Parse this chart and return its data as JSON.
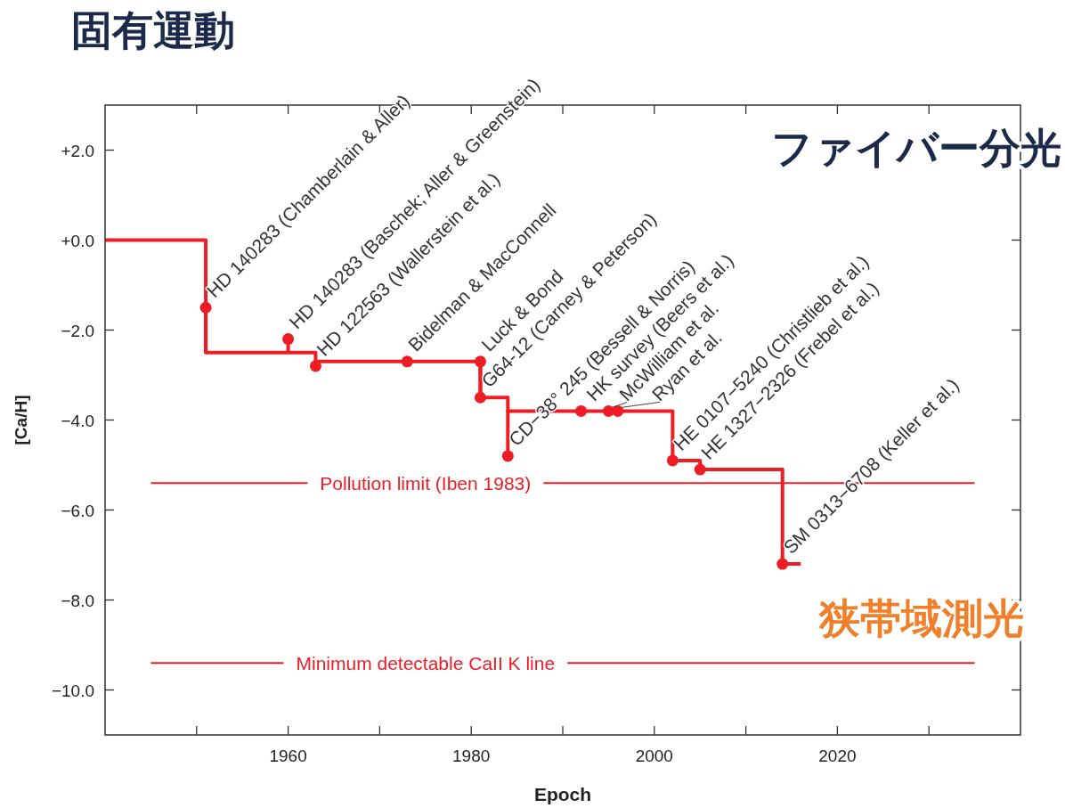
{
  "chart_data": {
    "type": "step",
    "title": "固有運動",
    "xlabel": "Epoch",
    "ylabel": "[Ca/H]",
    "xlim": [
      1940,
      2040
    ],
    "xticks": [
      {
        "value": 1950,
        "label": null
      },
      1960,
      {
        "value": 1970,
        "label": null
      },
      1980,
      {
        "value": 1990,
        "label": null
      },
      2000,
      {
        "value": 2010,
        "label": null
      },
      2020,
      {
        "value": 2030,
        "label": null
      }
    ],
    "ylim": [
      -11,
      3
    ],
    "yticks": [
      {
        "value": 2,
        "label": "+2.0"
      },
      {
        "value": 0,
        "label": "+0.0"
      },
      {
        "value": -2,
        "label": "−2.0"
      },
      {
        "value": -4,
        "label": "−4.0"
      },
      {
        "value": -6,
        "label": "−6.0"
      },
      {
        "value": -8,
        "label": "−8.0"
      },
      {
        "value": -10,
        "label": "−10.0"
      }
    ],
    "series": [
      {
        "color": "#ee1c25",
        "x": [
          1940,
          1951,
          1963,
          1981,
          1984,
          2002,
          2005,
          2014,
          2016
        ],
        "values": [
          0,
          -2.5,
          -2.7,
          -3.5,
          -3.8,
          -4.9,
          -5.1,
          -7.2,
          -7.2
        ]
      },
      {
        "type": "scatter",
        "color": "#ee1c25",
        "marker": "circle",
        "x": [
          1951,
          1960,
          1963,
          1973,
          1981,
          1981,
          1984,
          1992,
          1995,
          1996,
          2002,
          2005,
          2014
        ],
        "values": [
          -1.5,
          -2.2,
          -2.8,
          -2.7,
          -2.7,
          -3.5,
          -4.8,
          -3.8,
          -3.8,
          -3.8,
          -4.9,
          -5.1,
          -7.2
        ]
      }
    ],
    "ref_lines": [
      {
        "axis": "y",
        "value": -5.4,
        "label": "Pollution limit (Iben 1983)",
        "color": "#ee1c25"
      },
      {
        "axis": "y",
        "value": -9.4,
        "label": "Minimum detectable CaII K line",
        "color": "#ee1c25"
      }
    ],
    "annotations": [
      "ファイバー分光",
      "狭帯域測光",
      {
        "text": "HD 140283 (Chamberlain & Aller)",
        "x": 1951,
        "y": -1.5
      },
      {
        "text": "HD 140283 (Baschek; Aller & Greenstein)",
        "x": 1960,
        "y": -2.2
      },
      {
        "text": "HD 122563 (Wallerstein et al.)",
        "x": 1963,
        "y": -2.8
      },
      {
        "text": "Bidelman & MacConnell",
        "x": 1973,
        "y": -2.7
      },
      {
        "text": "Luck & Bond",
        "x": 1981,
        "y": -2.7
      },
      {
        "text": "G64-12 (Carney & Peterson)",
        "x": 1981,
        "y": -3.5
      },
      {
        "text": "CD−38° 245 (Bessell & Norris)",
        "x": 1984,
        "y": -4.8
      },
      {
        "text": "HK survey (Beers et al.)",
        "x": 1992,
        "y": -3.8
      },
      {
        "text": "McWilliam et al.",
        "x": 1995,
        "y": -3.8
      },
      {
        "text": "Ryan et al.",
        "x": 1996,
        "y": -3.8
      },
      {
        "text": "HE 0107−5240 (Christlieb et al.)",
        "x": 2002,
        "y": -4.9
      },
      {
        "text": "HE 1327−2326 (Frebel et al.)",
        "x": 2005,
        "y": -5.1
      },
      {
        "text": "SM 0313−6708 (Keller et al.)",
        "x": 2014,
        "y": -7.2
      }
    ]
  }
}
